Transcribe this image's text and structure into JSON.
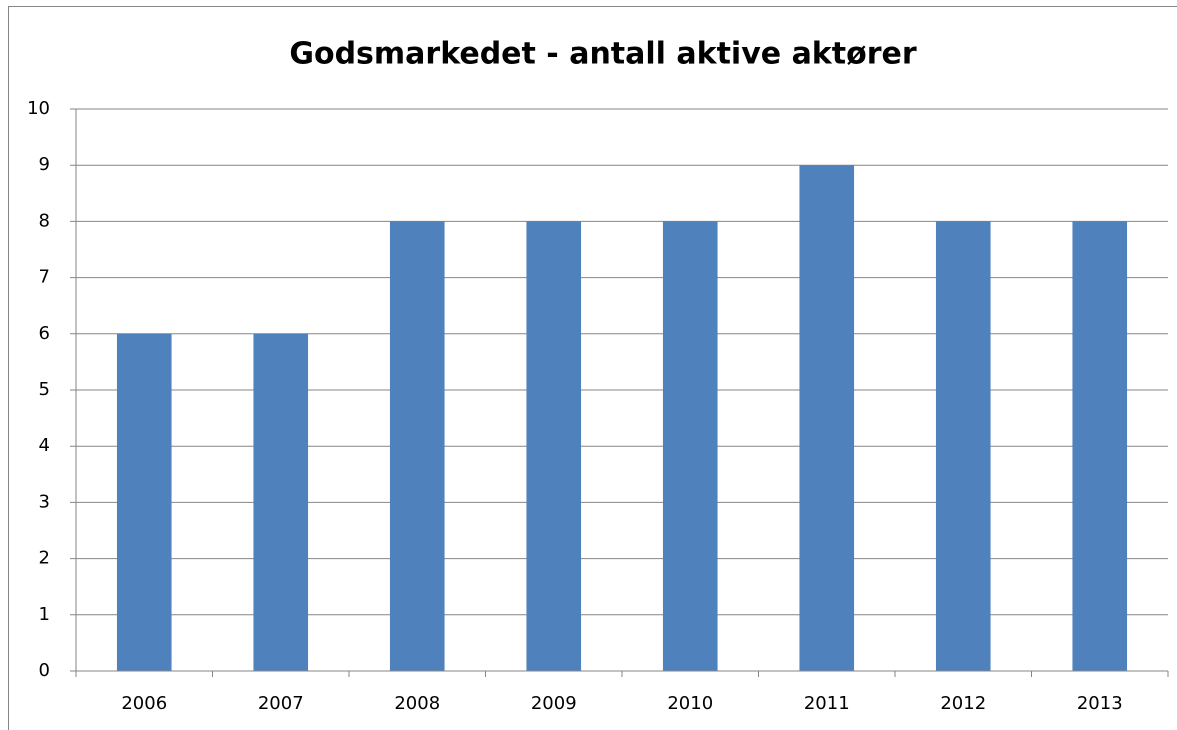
{
  "chart_data": {
    "type": "bar",
    "title": "Godsmarkedet - antall aktive aktører",
    "categories": [
      "2006",
      "2007",
      "2008",
      "2009",
      "2010",
      "2011",
      "2012",
      "2013"
    ],
    "values": [
      6,
      6,
      8,
      8,
      8,
      9,
      8,
      8
    ],
    "color": "#4f81bd",
    "ylim": [
      0,
      10
    ],
    "yticks": [
      0,
      1,
      2,
      3,
      4,
      5,
      6,
      7,
      8,
      9,
      10
    ],
    "grid": true
  }
}
